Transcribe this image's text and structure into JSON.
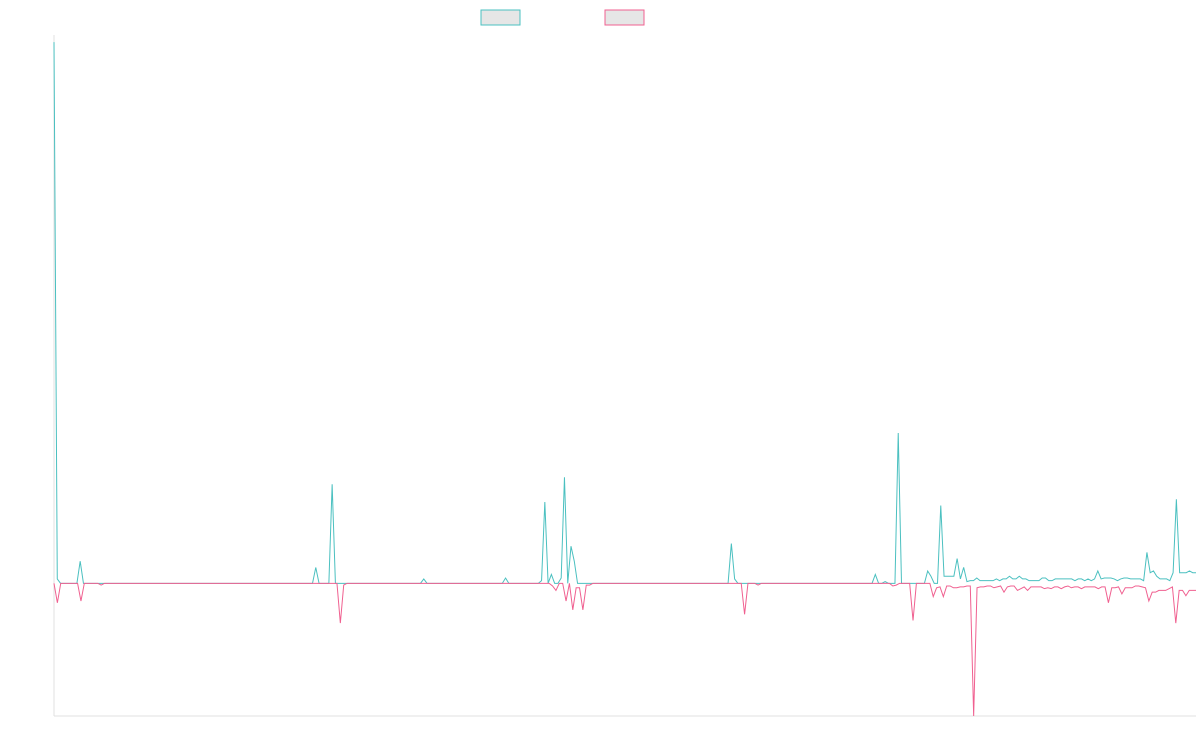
{
  "chart_data": {
    "type": "line",
    "title": "",
    "xlabel": "",
    "ylabel": "",
    "grid": false,
    "legend": {
      "placement": "top-center"
    },
    "ylim": [
      -150,
      620
    ],
    "series": [
      {
        "name": "",
        "color": "#4bc0c0",
        "fill": "#e6e6e6",
        "values": [
          612,
          5,
          0,
          0,
          0,
          0,
          0,
          0,
          25,
          0,
          0,
          0,
          0,
          0,
          0,
          0,
          0,
          0,
          0,
          0,
          0,
          0,
          0,
          0,
          0,
          0,
          0,
          0,
          0,
          0,
          0,
          0,
          0,
          0,
          0,
          0,
          0,
          0,
          0,
          0,
          0,
          0,
          0,
          0,
          0,
          0,
          0,
          0,
          0,
          0,
          0,
          0,
          0,
          0,
          0,
          0,
          0,
          0,
          0,
          0,
          0,
          0,
          0,
          0,
          0,
          0,
          0,
          0,
          0,
          0,
          0,
          0,
          0,
          0,
          0,
          0,
          0,
          0,
          0,
          0,
          18,
          0,
          0,
          0,
          0,
          112,
          0,
          0,
          0,
          0,
          0,
          0,
          0,
          0,
          0,
          0,
          0,
          0,
          0,
          0,
          0,
          0,
          0,
          0,
          0,
          0,
          0,
          0,
          0,
          0,
          0,
          0,
          0,
          5,
          0,
          0,
          0,
          0,
          0,
          0,
          0,
          0,
          0,
          0,
          0,
          0,
          0,
          0,
          0,
          0,
          0,
          0,
          0,
          0,
          0,
          0,
          0,
          0,
          6,
          0,
          0,
          0,
          0,
          0,
          0,
          0,
          0,
          0,
          0,
          3,
          92,
          0,
          10,
          0,
          0,
          6,
          120,
          0,
          42,
          25,
          0,
          0,
          0,
          0,
          0,
          0,
          0,
          0,
          0,
          0,
          0,
          0,
          0,
          0,
          0,
          0,
          0,
          0,
          0,
          0,
          0,
          0,
          0,
          0,
          0,
          0,
          0,
          0,
          0,
          0,
          0,
          0,
          0,
          0,
          0,
          0,
          0,
          0,
          0,
          0,
          0,
          0,
          0,
          0,
          0,
          0,
          0,
          45,
          5,
          0,
          0,
          0,
          0,
          0,
          0,
          0,
          0,
          0,
          0,
          0,
          0,
          0,
          0,
          0,
          0,
          0,
          0,
          0,
          0,
          0,
          0,
          0,
          0,
          0,
          0,
          0,
          0,
          0,
          0,
          0,
          0,
          0,
          0,
          0,
          0,
          0,
          0,
          0,
          0,
          0,
          0,
          10,
          0,
          0,
          2,
          0,
          0,
          0,
          170,
          0,
          0,
          0,
          0,
          0,
          0,
          0,
          0,
          14,
          8,
          0,
          0,
          88,
          8,
          8,
          8,
          8,
          28,
          5,
          18,
          2,
          3,
          3,
          6,
          3,
          3,
          3,
          3,
          3,
          5,
          3,
          5,
          5,
          8,
          5,
          5,
          8,
          5,
          5,
          3,
          3,
          3,
          3,
          6,
          6,
          3,
          3,
          5,
          5,
          5,
          5,
          5,
          5,
          3,
          5,
          5,
          3,
          5,
          3,
          5,
          14,
          5,
          6,
          6,
          6,
          5,
          3,
          5,
          6,
          6,
          5,
          5,
          5,
          5,
          3,
          35,
          12,
          14,
          8,
          5,
          5,
          5,
          3,
          12,
          95,
          12,
          12,
          12,
          14,
          12,
          12
        ]
      },
      {
        "name": "",
        "color": "#f06090",
        "fill": "#e6e6e6",
        "values": [
          0,
          -22,
          0,
          0,
          0,
          0,
          0,
          0,
          -20,
          0,
          0,
          0,
          0,
          0,
          -2,
          0,
          0,
          0,
          0,
          0,
          0,
          0,
          0,
          0,
          0,
          0,
          0,
          0,
          0,
          0,
          0,
          0,
          0,
          0,
          0,
          0,
          0,
          0,
          0,
          0,
          0,
          0,
          0,
          0,
          0,
          0,
          0,
          0,
          0,
          0,
          0,
          0,
          0,
          0,
          0,
          0,
          0,
          0,
          0,
          0,
          0,
          0,
          0,
          0,
          0,
          0,
          0,
          0,
          0,
          0,
          0,
          0,
          0,
          0,
          0,
          0,
          0,
          0,
          0,
          0,
          0,
          0,
          0,
          0,
          0,
          -45,
          -2,
          0,
          0,
          0,
          0,
          0,
          0,
          0,
          0,
          0,
          0,
          0,
          0,
          0,
          0,
          0,
          0,
          0,
          0,
          0,
          0,
          0,
          0,
          0,
          0,
          0,
          0,
          0,
          0,
          0,
          0,
          0,
          0,
          0,
          0,
          0,
          0,
          0,
          0,
          0,
          0,
          0,
          0,
          0,
          0,
          0,
          0,
          0,
          0,
          0,
          0,
          0,
          0,
          0,
          0,
          0,
          0,
          0,
          0,
          0,
          0,
          0,
          -3,
          -8,
          0,
          0,
          -20,
          0,
          -30,
          -5,
          -5,
          -30,
          -2,
          -2,
          0,
          0,
          0,
          0,
          0,
          0,
          0,
          0,
          0,
          0,
          0,
          0,
          0,
          0,
          0,
          0,
          0,
          0,
          0,
          0,
          0,
          0,
          0,
          0,
          0,
          0,
          0,
          0,
          0,
          0,
          0,
          0,
          0,
          0,
          0,
          0,
          0,
          0,
          0,
          0,
          0,
          0,
          0,
          0,
          0,
          -35,
          0,
          0,
          0,
          -2,
          0,
          0,
          0,
          0,
          0,
          0,
          0,
          0,
          0,
          0,
          0,
          0,
          0,
          0,
          0,
          0,
          0,
          0,
          0,
          0,
          0,
          0,
          0,
          0,
          0,
          0,
          0,
          0,
          0,
          0,
          0,
          0,
          0,
          0,
          0,
          0,
          0,
          0,
          0,
          -3,
          -2,
          0,
          0,
          0,
          0,
          -42,
          0,
          0,
          0,
          0,
          0,
          -15,
          -5,
          -4,
          -15,
          -3,
          -3,
          -5,
          -5,
          -4,
          -4,
          -3,
          -3,
          -150,
          -5,
          -4,
          -4,
          -3,
          -3,
          -5,
          -4,
          -3,
          -10,
          -4,
          -3,
          -3,
          -8,
          -6,
          -4,
          -8,
          -4,
          -4,
          -4,
          -4,
          -6,
          -5,
          -6,
          -4,
          -4,
          -6,
          -4,
          -3,
          -5,
          -4,
          -4,
          -6,
          -4,
          -4,
          -4,
          -4,
          -6,
          -4,
          -4,
          -22,
          -5,
          -5,
          -4,
          -12,
          -5,
          -5,
          -5,
          -3,
          -3,
          -4,
          -5,
          -20,
          -10,
          -10,
          -8,
          -8,
          -8,
          -6,
          -4,
          -45,
          -8,
          -8,
          -14,
          -8,
          -8,
          -8
        ]
      }
    ]
  }
}
